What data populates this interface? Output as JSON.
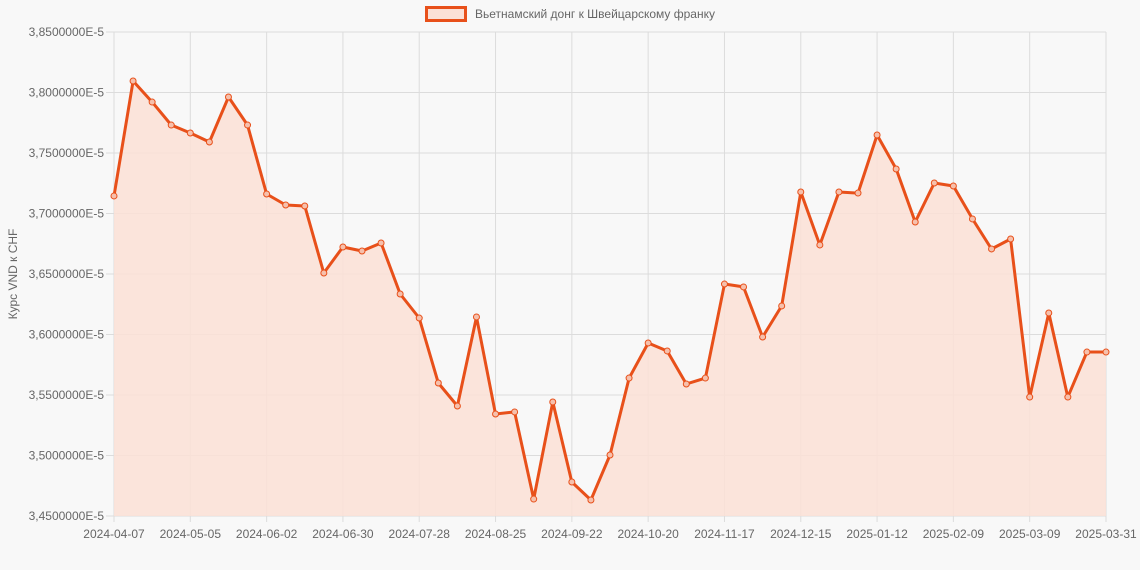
{
  "legend": {
    "label": "Вьетнамский донг к Швейцарскому франку",
    "line_color": "#e8501a",
    "fill_color": "#fbe0d6"
  },
  "chart_data": {
    "type": "area",
    "title": "",
    "xlabel": "",
    "ylabel": "Курс VND к CHF",
    "ylim": [
      3.45e-05,
      3.85e-05
    ],
    "y_ticks": [
      "3,8500000E-5",
      "3,8000000E-5",
      "3,7500000E-5",
      "3,7000000E-5",
      "3,6500000E-5",
      "3,6000000E-5",
      "3,5500000E-5",
      "3,5000000E-5",
      "3,4500000E-5"
    ],
    "x_ticks": [
      "2024-04-07",
      "2024-05-05",
      "2024-06-02",
      "2024-06-30",
      "2024-07-28",
      "2024-08-25",
      "2024-09-22",
      "2024-10-20",
      "2024-11-17",
      "2024-12-15",
      "2025-01-12",
      "2025-02-09",
      "2025-03-09",
      "2025-03-31"
    ],
    "legend_position": "top",
    "grid": true,
    "series": [
      {
        "name": "Вьетнамский донг к Швейцарскому франку",
        "x": [
          "2024-04-07",
          "2024-04-14",
          "2024-04-21",
          "2024-04-28",
          "2024-05-05",
          "2024-05-12",
          "2024-05-19",
          "2024-05-26",
          "2024-06-02",
          "2024-06-09",
          "2024-06-16",
          "2024-06-23",
          "2024-06-30",
          "2024-07-07",
          "2024-07-14",
          "2024-07-21",
          "2024-07-28",
          "2024-08-04",
          "2024-08-11",
          "2024-08-18",
          "2024-08-25",
          "2024-09-01",
          "2024-09-08",
          "2024-09-15",
          "2024-09-22",
          "2024-09-29",
          "2024-10-06",
          "2024-10-13",
          "2024-10-20",
          "2024-10-27",
          "2024-11-03",
          "2024-11-10",
          "2024-11-17",
          "2024-11-24",
          "2024-12-01",
          "2024-12-08",
          "2024-12-15",
          "2024-12-22",
          "2024-12-29",
          "2025-01-05",
          "2025-01-12",
          "2025-01-19",
          "2025-01-26",
          "2025-02-02",
          "2025-02-09",
          "2025-02-16",
          "2025-02-23",
          "2025-03-02",
          "2025-03-09",
          "2025-03-16",
          "2025-03-23",
          "2025-03-30",
          "2025-03-31"
        ],
        "values": [
          3.7145e-05,
          3.8095e-05,
          3.7921e-05,
          3.7731e-05,
          3.7665e-05,
          3.7591e-05,
          3.7963e-05,
          3.7731e-05,
          3.7161e-05,
          3.707e-05,
          3.7062e-05,
          3.6508e-05,
          3.6723e-05,
          3.669e-05,
          3.6756e-05,
          3.6335e-05,
          3.6136e-05,
          3.5599e-05,
          3.5409e-05,
          3.6145e-05,
          3.5343e-05,
          3.536e-05,
          3.464e-05,
          3.5442e-05,
          3.4781e-05,
          3.4632e-05,
          3.5004e-05,
          3.564e-05,
          3.593e-05,
          3.5864e-05,
          3.5591e-05,
          3.564e-05,
          3.6417e-05,
          3.6393e-05,
          3.5979e-05,
          3.6236e-05,
          3.7178e-05,
          3.674e-05,
          3.7178e-05,
          3.7169e-05,
          3.7649e-05,
          3.7368e-05,
          3.693e-05,
          3.7252e-05,
          3.7227e-05,
          3.6955e-05,
          3.6707e-05,
          3.6789e-05,
          3.5483e-05,
          3.6178e-05,
          3.5483e-05,
          3.5855e-05,
          3.5855e-05
        ]
      }
    ]
  }
}
